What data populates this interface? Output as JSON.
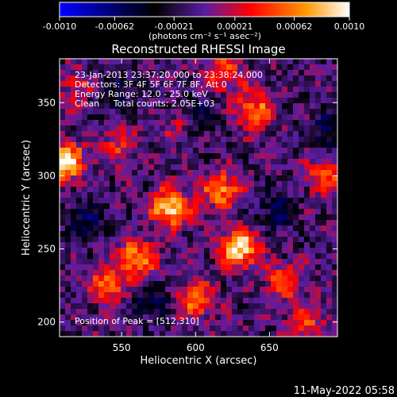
{
  "chart_data": {
    "type": "heatmap",
    "title": "Reconstructed RHESSI Image",
    "xlabel": "Heliocentric X (arcsec)",
    "ylabel": "Heliocentric Y (arcsec)",
    "xlim": [
      508,
      696
    ],
    "ylim": [
      190,
      380
    ],
    "x_ticks": [
      550,
      600,
      650
    ],
    "y_ticks": [
      200,
      250,
      300,
      350
    ],
    "colorbar": {
      "range": [
        -0.001,
        0.001
      ],
      "ticks": [
        "-0.0010",
        "-0.00062",
        "-0.00021",
        "0.00021",
        "0.00062",
        "0.0010"
      ],
      "tick_values": [
        -0.001,
        -0.00062,
        -0.00021,
        0.00021,
        0.00062,
        0.001
      ],
      "label": "(photons cm⁻² s⁻¹ asec⁻²)",
      "colors": [
        "#0000ff",
        "#000000",
        "#5a1da0",
        "#ff0000",
        "#ff9900",
        "#ffffff"
      ]
    },
    "annotations": {
      "time_range": "23-Jan-2013 23:37:20.000 to 23:38:24.000",
      "detectors": "Detectors: 3F 4F 5F 6F 7F 8F, Att 0",
      "energy_range": "Energy Range: 12.0 - 25.0 keV",
      "clean_counts": "Clean     Total counts: 2.05E+03",
      "peak": "Position of Peak = [512,310]"
    },
    "peaks": [
      {
        "x": 512,
        "y": 310,
        "intensity": 1.0
      },
      {
        "x": 583,
        "y": 278,
        "intensity": 0.95
      },
      {
        "x": 630,
        "y": 250,
        "intensity": 0.95
      },
      {
        "x": 560,
        "y": 243,
        "intensity": 0.75
      },
      {
        "x": 618,
        "y": 290,
        "intensity": 0.7
      },
      {
        "x": 540,
        "y": 225,
        "intensity": 0.6
      },
      {
        "x": 600,
        "y": 215,
        "intensity": 0.6
      },
      {
        "x": 660,
        "y": 228,
        "intensity": 0.55
      },
      {
        "x": 640,
        "y": 345,
        "intensity": 0.6
      },
      {
        "x": 688,
        "y": 300,
        "intensity": 0.55
      },
      {
        "x": 620,
        "y": 370,
        "intensity": 0.5
      },
      {
        "x": 548,
        "y": 320,
        "intensity": 0.4
      },
      {
        "x": 675,
        "y": 200,
        "intensity": 0.45
      },
      {
        "x": 520,
        "y": 360,
        "intensity": 0.35
      },
      {
        "x": 590,
        "y": 335,
        "intensity": 0.35
      }
    ],
    "troughs": [
      {
        "x": 545,
        "y": 355
      },
      {
        "x": 600,
        "y": 340
      },
      {
        "x": 690,
        "y": 330
      },
      {
        "x": 525,
        "y": 270
      },
      {
        "x": 655,
        "y": 275
      },
      {
        "x": 570,
        "y": 215
      }
    ]
  },
  "footer_date": "11-May-2022 05:58"
}
